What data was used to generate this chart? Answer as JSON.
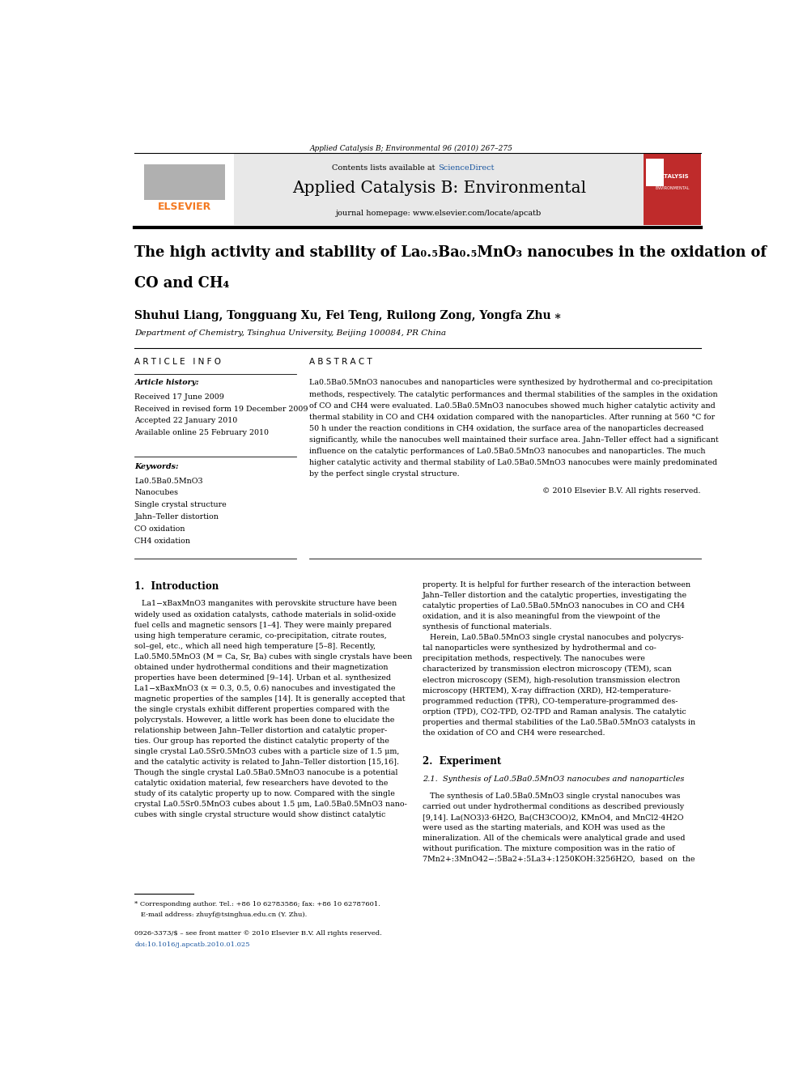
{
  "background_color": "#ffffff",
  "page_width": 9.92,
  "page_height": 13.23,
  "journal_ref": "Applied Catalysis B; Environmental 96 (2010) 267–275",
  "header_bg": "#e8e8e8",
  "sciencedirect_color": "#1a56a0",
  "journal_title": "Applied Catalysis B: Environmental",
  "journal_homepage": "journal homepage: www.elsevier.com/locate/apcatb",
  "elsevier_color": "#f47920",
  "authors": "Shuhui Liang, Tongguang Xu, Fei Teng, Ruilong Zong, Yongfa Zhu",
  "affiliation": "Department of Chemistry, Tsinghua University, Beijing 100084, PR China",
  "article_info_title": "A R T I C L E   I N F O",
  "abstract_title": "A B S T R A C T",
  "article_history_label": "Article history:",
  "received": "Received 17 June 2009",
  "received_revised": "Received in revised form 19 December 2009",
  "accepted": "Accepted 22 January 2010",
  "available": "Available online 25 February 2010",
  "keywords_label": "Keywords:",
  "keyword1": "La0.5Ba0.5MnO3",
  "keyword2": "Nanocubes",
  "keyword3": "Single crystal structure",
  "keyword4": "Jahn–Teller distortion",
  "keyword5": "CO oxidation",
  "keyword6": "CH4 oxidation",
  "abstract_text": "La0.5Ba0.5MnO3 nanocubes and nanoparticles were synthesized by hydrothermal and co-precipitation\nmethods, respectively. The catalytic performances and thermal stabilities of the samples in the oxidation\nof CO and CH4 were evaluated. La0.5Ba0.5MnO3 nanocubes showed much higher catalytic activity and\nthermal stability in CO and CH4 oxidation compared with the nanoparticles. After running at 560 °C for\n50 h under the reaction conditions in CH4 oxidation, the surface area of the nanoparticles decreased\nsignificantly, while the nanocubes well maintained their surface area. Jahn–Teller effect had a significant\ninfluence on the catalytic performances of La0.5Ba0.5MnO3 nanocubes and nanoparticles. The much\nhigher catalytic activity and thermal stability of La0.5Ba0.5MnO3 nanocubes were mainly predominated\nby the perfect single crystal structure.",
  "copyright": "© 2010 Elsevier B.V. All rights reserved.",
  "intro_col1": "   La1−xBaxMnO3 manganites with perovskite structure have been\nwidely used as oxidation catalysts, cathode materials in solid-oxide\nfuel cells and magnetic sensors [1–4]. They were mainly prepared\nusing high temperature ceramic, co-precipitation, citrate routes,\nsol–gel, etc., which all need high temperature [5–8]. Recently,\nLa0.5M0.5MnO3 (M = Ca, Sr, Ba) cubes with single crystals have been\nobtained under hydrothermal conditions and their magnetization\nproperties have been determined [9–14]. Urban et al. synthesized\nLa1−xBaxMnO3 (x = 0.3, 0.5, 0.6) nanocubes and investigated the\nmagnetic properties of the samples [14]. It is generally accepted that\nthe single crystals exhibit different properties compared with the\npolycrystals. However, a little work has been done to elucidate the\nrelationship between Jahn–Teller distortion and catalytic proper-\nties. Our group has reported the distinct catalytic property of the\nsingle crystal La0.5Sr0.5MnO3 cubes with a particle size of 1.5 μm,\nand the catalytic activity is related to Jahn–Teller distortion [15,16].\nThough the single crystal La0.5Ba0.5MnO3 nanocube is a potential\ncatalytic oxidation material, few researchers have devoted to the\nstudy of its catalytic property up to now. Compared with the single\ncrystal La0.5Sr0.5MnO3 cubes about 1.5 μm, La0.5Ba0.5MnO3 nano-\ncubes with single crystal structure would show distinct catalytic",
  "intro_col2": "property. It is helpful for further research of the interaction between\nJahn–Teller distortion and the catalytic properties, investigating the\ncatalytic properties of La0.5Ba0.5MnO3 nanocubes in CO and CH4\noxidation, and it is also meaningful from the viewpoint of the\nsynthesis of functional materials.\n   Herein, La0.5Ba0.5MnO3 single crystal nanocubes and polycrys-\ntal nanoparticles were synthesized by hydrothermal and co-\nprecipitation methods, respectively. The nanocubes were\ncharacterized by transmission electron microscopy (TEM), scan\nelectron microscopy (SEM), high-resolution transmission electron\nmicroscopy (HRTEM), X-ray diffraction (XRD), H2-temperature-\nprogrammed reduction (TPR), CO-temperature-programmed des-\norption (TPD), CO2-TPD, O2-TPD and Raman analysis. The catalytic\nproperties and thermal stabilities of the La0.5Ba0.5MnO3 catalysts in\nthe oxidation of CO and CH4 were researched.",
  "section2_title": "2.  Experiment",
  "section2_1_title": "2.1.  Synthesis of La0.5Ba0.5MnO3 nanocubes and nanoparticles",
  "section2_1_text": "   The synthesis of La0.5Ba0.5MnO3 single crystal nanocubes was\ncarried out under hydrothermal conditions as described previously\n[9,14]. La(NO3)3·6H2O, Ba(CH3COO)2, KMnO4, and MnCl2·4H2O\nwere used as the starting materials, and KOH was used as the\nmineralization. All of the chemicals were analytical grade and used\nwithout purification. The mixture composition was in the ratio of\n7Mn2+:3MnO42−:5Ba2+:5La3+:1250KOH:3256H2O,  based  on  the",
  "footnote_star": "* Corresponding author. Tel.: +86 10 62783586; fax: +86 10 62787601.",
  "footnote_email": "   E-mail address: zhuyf@tsinghua.edu.cn (Y. Zhu).",
  "footer_issn": "0926-3373/$ – see front matter © 2010 Elsevier B.V. All rights reserved.",
  "footer_doi": "doi:10.1016/j.apcatb.2010.01.025",
  "doi_color": "#1a56a0"
}
